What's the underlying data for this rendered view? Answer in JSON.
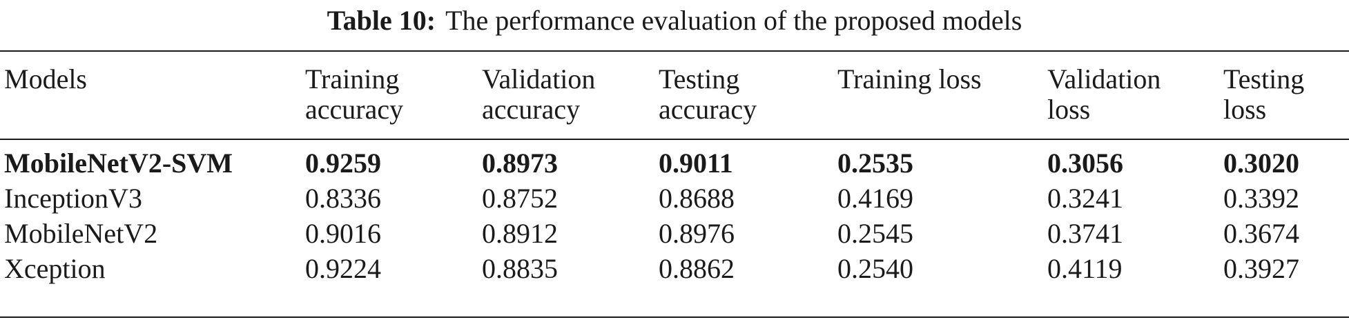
{
  "caption": {
    "label": "Table 10:",
    "text": "The performance evaluation of the proposed models"
  },
  "table": {
    "headers": [
      [
        "Models"
      ],
      [
        "Training",
        "accuracy"
      ],
      [
        "Validation",
        "accuracy"
      ],
      [
        "Testing",
        "accuracy"
      ],
      [
        "Training loss"
      ],
      [
        "Validation",
        "loss"
      ],
      [
        "Testing",
        "loss"
      ]
    ],
    "rows": [
      {
        "bold": true,
        "cells": [
          "MobileNetV2-SVM",
          "0.9259",
          "0.8973",
          "0.9011",
          "0.2535",
          "0.3056",
          "0.3020"
        ]
      },
      {
        "bold": false,
        "cells": [
          "InceptionV3",
          "0.8336",
          "0.8752",
          "0.8688",
          "0.4169",
          "0.3241",
          "0.3392"
        ]
      },
      {
        "bold": false,
        "cells": [
          "MobileNetV2",
          "0.9016",
          "0.8912",
          "0.8976",
          "0.2545",
          "0.3741",
          "0.3674"
        ]
      },
      {
        "bold": false,
        "cells": [
          "Xception",
          "0.9224",
          "0.8835",
          "0.8862",
          "0.2540",
          "0.4119",
          "0.3927"
        ]
      }
    ]
  }
}
